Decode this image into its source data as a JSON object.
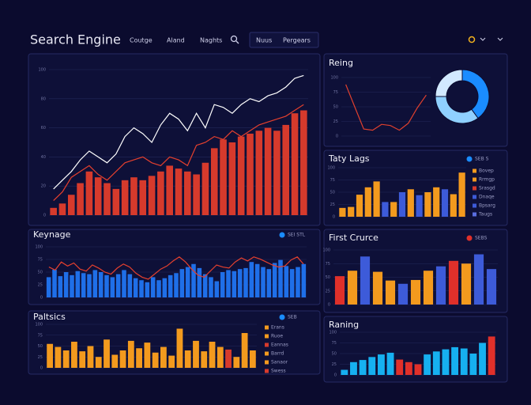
{
  "header": {
    "title": "Search Engine",
    "nav": [
      "Coutge",
      "Aland",
      "Naghts"
    ],
    "tabs": [
      "Nuus",
      "Pergears"
    ]
  },
  "chart_data": [
    {
      "type": "combo",
      "ylim": [
        0,
        100
      ],
      "yticks": [
        0,
        20,
        40,
        60,
        80,
        100
      ],
      "series": [
        {
          "style": "bar",
          "color": "#d63a2c",
          "values": [
            5,
            8,
            14,
            22,
            30,
            26,
            22,
            18,
            24,
            26,
            24,
            27,
            30,
            34,
            32,
            30,
            28,
            36,
            46,
            52,
            50,
            54,
            56,
            58,
            60,
            58,
            62,
            70,
            72
          ]
        },
        {
          "style": "line",
          "color": "#ffffff",
          "values": [
            18,
            24,
            30,
            38,
            44,
            40,
            36,
            42,
            54,
            60,
            56,
            50,
            62,
            70,
            66,
            58,
            70,
            60,
            76,
            74,
            70,
            76,
            80,
            78,
            82,
            84,
            88,
            94,
            96
          ]
        },
        {
          "style": "line",
          "color": "#e5402e",
          "values": [
            10,
            16,
            26,
            30,
            34,
            28,
            24,
            30,
            36,
            38,
            40,
            36,
            34,
            40,
            38,
            34,
            48,
            50,
            54,
            52,
            58,
            54,
            58,
            62,
            64,
            66,
            68,
            72,
            76
          ]
        }
      ]
    },
    {
      "type": "line",
      "title": "Reing",
      "color": "#e0402e",
      "ylim": [
        0,
        100
      ],
      "yticks": [
        0,
        25,
        50,
        75,
        100
      ],
      "values": [
        88,
        50,
        12,
        10,
        20,
        18,
        10,
        22,
        48,
        70
      ]
    },
    {
      "type": "pie",
      "values": [
        40,
        35,
        25
      ],
      "colors": [
        "#1a8cff",
        "#8fd0ff",
        "#d2e9ff"
      ]
    },
    {
      "type": "bar",
      "title": "Taty Lags",
      "name": "SEB S",
      "name_color": "#1a8cff",
      "ylim": [
        0,
        100
      ],
      "yticks": [
        0,
        25,
        50,
        75,
        100
      ],
      "values": [
        18,
        20,
        45,
        60,
        72,
        30,
        30,
        50,
        56,
        44,
        50,
        60,
        56,
        46,
        90
      ],
      "colors": [
        "#f39a1e",
        "#f39a1e",
        "#f39a1e",
        "#f39a1e",
        "#f39a1e",
        "#3d5bd9",
        "#f39a1e",
        "#3d5bd9",
        "#f39a1e",
        "#3d5bd9",
        "#f39a1e",
        "#f39a1e",
        "#3d5bd9",
        "#f39a1e",
        "#f39a1e"
      ],
      "legend_items": [
        {
          "name": "Bovep",
          "color": "#f39a1e"
        },
        {
          "name": "Rrmgp",
          "color": "#f39a1e"
        },
        {
          "name": "Srasgd",
          "color": "#d63a2c"
        },
        {
          "name": "Dnaqe",
          "color": "#3d5bd9"
        },
        {
          "name": "Bpsarg",
          "color": "#3d5bd9"
        },
        {
          "name": "Taugs",
          "color": "#5a6ee0"
        }
      ]
    },
    {
      "type": "combo",
      "title": "Keynage",
      "name": "SEI STL",
      "name_color": "#1a8cff",
      "ylim": [
        0,
        100
      ],
      "yticks": [
        0,
        25,
        50,
        75,
        100
      ],
      "series": [
        {
          "style": "bar",
          "color": "#1f6fe8",
          "values": [
            40,
            55,
            42,
            50,
            44,
            52,
            48,
            46,
            54,
            50,
            44,
            40,
            46,
            54,
            46,
            38,
            34,
            30,
            40,
            34,
            38,
            44,
            48,
            56,
            60,
            66,
            58,
            46,
            40,
            32,
            50,
            54,
            52,
            56,
            58,
            70,
            66,
            60,
            56,
            68,
            74,
            62,
            56,
            60,
            66
          ]
        },
        {
          "style": "line",
          "color": "#e5402e",
          "values": [
            60,
            54,
            70,
            62,
            68,
            56,
            52,
            64,
            58,
            50,
            46,
            58,
            66,
            60,
            48,
            40,
            36,
            46,
            56,
            62,
            72,
            80,
            70,
            56,
            44,
            40,
            52,
            64,
            60,
            58,
            70,
            78,
            72,
            80,
            76,
            70,
            64,
            60,
            62,
            74,
            80,
            66
          ]
        }
      ]
    },
    {
      "type": "bar",
      "title": "First Crurce",
      "name": "SEBS",
      "name_color": "#e0302a",
      "ylim": [
        0,
        100
      ],
      "yticks": [
        0,
        25,
        50,
        75,
        100
      ],
      "values": [
        52,
        62,
        88,
        60,
        44,
        38,
        45,
        62,
        70,
        80,
        75,
        92,
        65
      ],
      "colors": [
        "#e0302a",
        "#f39a1e",
        "#3d5bd9",
        "#f39a1e",
        "#f39a1e",
        "#3d5bd9",
        "#f39a1e",
        "#f39a1e",
        "#3d5bd9",
        "#e0302a",
        "#f39a1e",
        "#3d5bd9",
        "#3d5bd9"
      ]
    },
    {
      "type": "bar",
      "title": "Paltsics",
      "name": "SEB",
      "name_color": "#1a8cff",
      "color": "#f39a1e",
      "ylim": [
        0,
        100
      ],
      "yticks": [
        0,
        25,
        50,
        75,
        100
      ],
      "values": [
        55,
        48,
        40,
        60,
        38,
        50,
        25,
        65,
        30,
        40,
        62,
        45,
        58,
        35,
        48,
        28,
        90,
        40,
        62,
        38,
        60,
        48,
        42,
        25,
        80,
        40
      ],
      "colors": [
        "#f39a1e",
        "#f39a1e",
        "#f39a1e",
        "#f39a1e",
        "#f39a1e",
        "#f39a1e",
        "#f39a1e",
        "#f39a1e",
        "#f39a1e",
        "#f39a1e",
        "#f39a1e",
        "#f39a1e",
        "#f39a1e",
        "#f39a1e",
        "#f39a1e",
        "#f39a1e",
        "#f39a1e",
        "#f39a1e",
        "#f39a1e",
        "#f39a1e",
        "#f39a1e",
        "#f39a1e",
        "#d63a2c",
        "#f39a1e",
        "#f39a1e",
        "#f39a1e"
      ],
      "legend_items": [
        {
          "name": "Erans",
          "color": "#f39a1e"
        },
        {
          "name": "Ruoe",
          "color": "#f39a1e"
        },
        {
          "name": "Eannas",
          "color": "#d63a2c"
        },
        {
          "name": "Barrd",
          "color": "#f39a1e"
        },
        {
          "name": "Sanaor",
          "color": "#f39a1e"
        },
        {
          "name": "Swess",
          "color": "#d63a2c"
        }
      ]
    },
    {
      "type": "bar",
      "title": "Raning",
      "ylim": [
        0,
        100
      ],
      "yticks": [
        0,
        25,
        50,
        75,
        100
      ],
      "values": [
        12,
        30,
        35,
        42,
        48,
        52,
        36,
        30,
        25,
        48,
        55,
        60,
        65,
        62,
        50,
        75,
        90
      ],
      "colors": [
        "#16b0f0",
        "#16b0f0",
        "#16b0f0",
        "#16b0f0",
        "#16b0f0",
        "#16b0f0",
        "#e0302a",
        "#e0302a",
        "#e0302a",
        "#16b0f0",
        "#16b0f0",
        "#16b0f0",
        "#16b0f0",
        "#16b0f0",
        "#16b0f0",
        "#16b0f0",
        "#e0302a"
      ]
    }
  ]
}
